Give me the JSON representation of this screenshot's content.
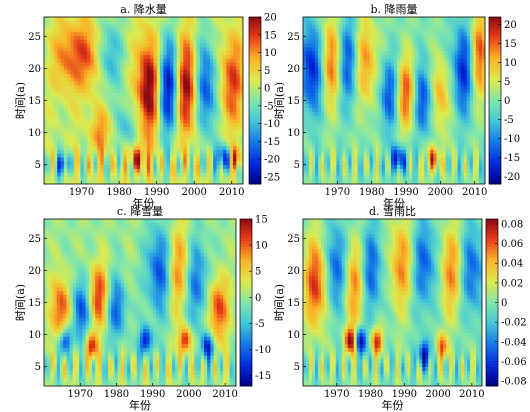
{
  "chart_data": [
    {
      "type": "heatmap",
      "title": "a. 降水量",
      "xlabel": "年份",
      "ylabel": "时间(a)",
      "xlim": [
        1960,
        2013
      ],
      "ylim": [
        2,
        28
      ],
      "xticks": [
        1970,
        1980,
        1990,
        2000,
        2010
      ],
      "yticks": [
        5,
        10,
        15,
        20,
        25
      ],
      "colorbar": {
        "min": -27,
        "max": 20,
        "ticks": [
          20,
          15,
          10,
          5,
          0,
          -5,
          -10,
          -15,
          -20,
          -25
        ]
      },
      "features": [
        {
          "x": 1988,
          "y": 17,
          "sx": 2.2,
          "sy": 5.5,
          "amp": 24
        },
        {
          "x": 1993,
          "y": 17,
          "sx": 2.2,
          "sy": 5.5,
          "amp": -25
        },
        {
          "x": 1998,
          "y": 17,
          "sx": 2.2,
          "sy": 5.5,
          "amp": 22
        },
        {
          "x": 2003,
          "y": 17,
          "sx": 2.2,
          "sy": 5.5,
          "amp": -20
        },
        {
          "x": 1966,
          "y": 22,
          "sx": 2.5,
          "sy": 4,
          "amp": 12
        },
        {
          "x": 1972,
          "y": 22,
          "sx": 2.5,
          "sy": 4,
          "amp": 14
        },
        {
          "x": 1977,
          "y": 22,
          "sx": 2.5,
          "sy": 4,
          "amp": -12
        },
        {
          "x": 2010,
          "y": 18,
          "sx": 2.5,
          "sy": 5,
          "amp": 14
        },
        {
          "x": 1975,
          "y": 10,
          "sx": 2,
          "sy": 2.5,
          "amp": 10
        },
        {
          "x": 1982,
          "y": 11,
          "sx": 2,
          "sy": 2.5,
          "amp": -10
        },
        {
          "x": 1985,
          "y": 6,
          "sx": 1.5,
          "sy": 1.5,
          "amp": 15
        },
        {
          "x": 1965,
          "y": 5,
          "sx": 1.2,
          "sy": 1.2,
          "amp": -18
        },
        {
          "x": 2008,
          "y": 6,
          "sx": 1.5,
          "sy": 1.5,
          "amp": -20
        },
        {
          "x": 2011,
          "y": 6,
          "sx": 1.3,
          "sy": 1.3,
          "amp": 15
        }
      ]
    },
    {
      "type": "heatmap",
      "title": "b. 降雨量",
      "xlabel": "年份",
      "ylabel": "时间(a)",
      "xlim": [
        1960,
        2013
      ],
      "ylim": [
        2,
        28
      ],
      "xticks": [
        1970,
        1980,
        1990,
        2000,
        2010
      ],
      "yticks": [
        5,
        10,
        15,
        20,
        25
      ],
      "colorbar": {
        "min": -22,
        "max": 22,
        "ticks": [
          20,
          15,
          10,
          5,
          0,
          -5,
          -10,
          -15,
          -20
        ]
      },
      "features": [
        {
          "x": 1963,
          "y": 20,
          "sx": 2.5,
          "sy": 5,
          "amp": -20
        },
        {
          "x": 1968,
          "y": 21,
          "sx": 2.5,
          "sy": 5,
          "amp": 18
        },
        {
          "x": 1973,
          "y": 21,
          "sx": 2.5,
          "sy": 5,
          "amp": -16
        },
        {
          "x": 1978,
          "y": 21,
          "sx": 2.5,
          "sy": 5,
          "amp": 14
        },
        {
          "x": 1985,
          "y": 16,
          "sx": 2,
          "sy": 4,
          "amp": -14
        },
        {
          "x": 1990,
          "y": 16,
          "sx": 2,
          "sy": 4,
          "amp": 16
        },
        {
          "x": 1995,
          "y": 15,
          "sx": 2,
          "sy": 4,
          "amp": -15
        },
        {
          "x": 2000,
          "y": 16,
          "sx": 2,
          "sy": 4,
          "amp": 12
        },
        {
          "x": 2007,
          "y": 20,
          "sx": 2.5,
          "sy": 5,
          "amp": -18
        },
        {
          "x": 2011,
          "y": 22,
          "sx": 2,
          "sy": 5,
          "amp": 18
        },
        {
          "x": 1988,
          "y": 6,
          "sx": 1.5,
          "sy": 1.5,
          "amp": -18
        },
        {
          "x": 1998,
          "y": 6,
          "sx": 1.5,
          "sy": 1.5,
          "amp": 15
        }
      ]
    },
    {
      "type": "heatmap",
      "title": "c. 降雪量",
      "xlabel": "年份",
      "ylabel": "时间(a)",
      "xlim": [
        1960,
        2013
      ],
      "ylim": [
        2,
        28
      ],
      "xticks": [
        1970,
        1980,
        1990,
        2000,
        2010
      ],
      "yticks": [
        5,
        10,
        15,
        20,
        25
      ],
      "colorbar": {
        "min": -17,
        "max": 15,
        "ticks": [
          15,
          10,
          5,
          0,
          -5,
          -10,
          -15
        ]
      },
      "features": [
        {
          "x": 1965,
          "y": 14,
          "sx": 2,
          "sy": 3.5,
          "amp": 12
        },
        {
          "x": 1970,
          "y": 14,
          "sx": 2,
          "sy": 3.5,
          "amp": -12
        },
        {
          "x": 1975,
          "y": 16,
          "sx": 2,
          "sy": 3.5,
          "amp": 12
        },
        {
          "x": 1980,
          "y": 14,
          "sx": 2,
          "sy": 3.5,
          "amp": -10
        },
        {
          "x": 1992,
          "y": 20,
          "sx": 2.5,
          "sy": 5,
          "amp": -12
        },
        {
          "x": 1997,
          "y": 20,
          "sx": 2.5,
          "sy": 5,
          "amp": 10
        },
        {
          "x": 2002,
          "y": 18,
          "sx": 2.5,
          "sy": 5,
          "amp": -10
        },
        {
          "x": 2008,
          "y": 14,
          "sx": 2,
          "sy": 3.5,
          "amp": 12
        },
        {
          "x": 1966,
          "y": 9,
          "sx": 1.2,
          "sy": 1.5,
          "amp": -14
        },
        {
          "x": 1973,
          "y": 8,
          "sx": 1.2,
          "sy": 1.5,
          "amp": 13
        },
        {
          "x": 1988,
          "y": 9,
          "sx": 1.2,
          "sy": 1.5,
          "amp": -15
        },
        {
          "x": 1999,
          "y": 9,
          "sx": 1.2,
          "sy": 1.5,
          "amp": 14
        },
        {
          "x": 2005,
          "y": 8,
          "sx": 1.2,
          "sy": 1.5,
          "amp": -14
        }
      ]
    },
    {
      "type": "heatmap",
      "title": "d. 雪雨比",
      "xlabel": "年份",
      "ylabel": "时间(a)",
      "xlim": [
        1960,
        2013
      ],
      "ylim": [
        2,
        28
      ],
      "xticks": [
        1970,
        1980,
        1990,
        2000,
        2010
      ],
      "yticks": [
        5,
        10,
        15,
        20,
        25
      ],
      "colorbar": {
        "min": -0.085,
        "max": 0.085,
        "ticks": [
          0.08,
          0.06,
          0.04,
          0.02,
          0,
          -0.02,
          -0.04,
          -0.06,
          -0.08
        ]
      },
      "features": [
        {
          "x": 1964,
          "y": 18,
          "sx": 2.5,
          "sy": 5,
          "amp": 0.07
        },
        {
          "x": 1970,
          "y": 20,
          "sx": 2.5,
          "sy": 5,
          "amp": -0.06
        },
        {
          "x": 1975,
          "y": 18,
          "sx": 2.5,
          "sy": 5,
          "amp": 0.06
        },
        {
          "x": 1980,
          "y": 20,
          "sx": 2.5,
          "sy": 5,
          "amp": -0.05
        },
        {
          "x": 1989,
          "y": 21,
          "sx": 2.5,
          "sy": 5,
          "amp": 0.05
        },
        {
          "x": 1996,
          "y": 21,
          "sx": 2.5,
          "sy": 5,
          "amp": -0.05
        },
        {
          "x": 2004,
          "y": 20,
          "sx": 2.5,
          "sy": 5,
          "amp": 0.05
        },
        {
          "x": 2010,
          "y": 20,
          "sx": 2.5,
          "sy": 5,
          "amp": -0.05
        },
        {
          "x": 1974,
          "y": 9,
          "sx": 1.2,
          "sy": 1.5,
          "amp": 0.08
        },
        {
          "x": 1977,
          "y": 9,
          "sx": 1.2,
          "sy": 1.5,
          "amp": -0.08
        },
        {
          "x": 1982,
          "y": 9,
          "sx": 1.2,
          "sy": 1.5,
          "amp": 0.07
        },
        {
          "x": 1996,
          "y": 7,
          "sx": 1.2,
          "sy": 1.5,
          "amp": -0.08
        },
        {
          "x": 2001,
          "y": 8,
          "sx": 1.2,
          "sy": 1.5,
          "amp": 0.06
        }
      ]
    }
  ]
}
